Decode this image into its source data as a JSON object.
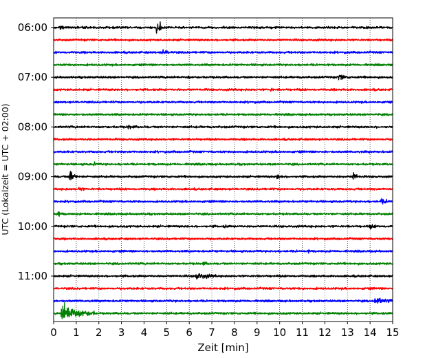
{
  "chart_data": {
    "type": "line",
    "title": "",
    "xlabel": "Zeit  [min]",
    "ylabel": "UTC (Lokalzeit = UTC + 02:00)",
    "xlim": [
      0,
      15
    ],
    "x_ticks": [
      "0",
      "1",
      "2",
      "3",
      "4",
      "5",
      "6",
      "7",
      "8",
      "9",
      "10",
      "11",
      "12",
      "13",
      "14",
      "15"
    ],
    "y_tick_labels": [
      "06:00",
      "07:00",
      "08:00",
      "09:00",
      "10:00",
      "11:00"
    ],
    "y_tick_rows": [
      0,
      4,
      8,
      12,
      16,
      20
    ],
    "vertical_grid": true,
    "grid_style": "dotted",
    "row_interval_minutes": 15,
    "start_time": "06:00",
    "colors": [
      "#000000",
      "#ff0000",
      "#0000ff",
      "#008000"
    ],
    "color_names": [
      "black",
      "red",
      "blue",
      "green"
    ],
    "traces": [
      {
        "row": 0,
        "time": "06:00",
        "color": "black",
        "events": [
          {
            "t": 0.3,
            "amp": 1.2,
            "len": 0.15
          },
          {
            "t": 4.55,
            "amp": 5.5,
            "len": 0.12
          },
          {
            "t": 4.7,
            "amp": 3.5,
            "len": 0.1
          }
        ]
      },
      {
        "row": 1,
        "time": "06:15",
        "color": "red",
        "events": []
      },
      {
        "row": 2,
        "time": "06:30",
        "color": "blue",
        "events": [
          {
            "t": 4.8,
            "amp": 1.3,
            "len": 0.5
          }
        ]
      },
      {
        "row": 3,
        "time": "06:45",
        "color": "green",
        "events": []
      },
      {
        "row": 4,
        "time": "07:00",
        "color": "black",
        "events": [
          {
            "t": 5.95,
            "amp": 1.2,
            "len": 0.1
          },
          {
            "t": 12.6,
            "amp": 1.6,
            "len": 0.5
          }
        ]
      },
      {
        "row": 5,
        "time": "07:15",
        "color": "red",
        "events": [
          {
            "t": 9.6,
            "amp": 1.0,
            "len": 0.15
          }
        ]
      },
      {
        "row": 6,
        "time": "07:30",
        "color": "blue",
        "events": []
      },
      {
        "row": 7,
        "time": "07:45",
        "color": "green",
        "events": []
      },
      {
        "row": 8,
        "time": "08:00",
        "color": "black",
        "events": [
          {
            "t": 3.3,
            "amp": 1.0,
            "len": 0.4
          }
        ]
      },
      {
        "row": 9,
        "time": "08:15",
        "color": "red",
        "events": []
      },
      {
        "row": 10,
        "time": "08:30",
        "color": "blue",
        "events": []
      },
      {
        "row": 11,
        "time": "08:45",
        "color": "green",
        "events": [
          {
            "t": 1.8,
            "amp": 1.3,
            "len": 0.1
          }
        ]
      },
      {
        "row": 12,
        "time": "09:00",
        "color": "black",
        "events": [
          {
            "t": 0.7,
            "amp": 4.5,
            "len": 0.35
          },
          {
            "t": 9.9,
            "amp": 1.6,
            "len": 0.3
          },
          {
            "t": 13.25,
            "amp": 3.0,
            "len": 0.25
          }
        ]
      },
      {
        "row": 13,
        "time": "09:15",
        "color": "red",
        "events": [
          {
            "t": 1.1,
            "amp": 1.2,
            "len": 0.3
          }
        ]
      },
      {
        "row": 14,
        "time": "09:30",
        "color": "blue",
        "events": [
          {
            "t": 14.5,
            "amp": 1.2,
            "len": 0.5
          }
        ]
      },
      {
        "row": 15,
        "time": "09:45",
        "color": "green",
        "events": [
          {
            "t": 0.15,
            "amp": 1.4,
            "len": 0.3
          }
        ]
      },
      {
        "row": 16,
        "time": "10:00",
        "color": "black",
        "events": [
          {
            "t": 7.6,
            "amp": 1.0,
            "len": 0.1
          },
          {
            "t": 14.0,
            "amp": 1.1,
            "len": 0.3
          }
        ]
      },
      {
        "row": 17,
        "time": "10:15",
        "color": "red",
        "events": []
      },
      {
        "row": 18,
        "time": "10:30",
        "color": "blue",
        "events": [
          {
            "t": 11.3,
            "amp": 1.0,
            "len": 0.1
          }
        ]
      },
      {
        "row": 19,
        "time": "10:45",
        "color": "green",
        "events": [
          {
            "t": 6.6,
            "amp": 1.0,
            "len": 0.3
          }
        ]
      },
      {
        "row": 20,
        "time": "11:00",
        "color": "black",
        "events": [
          {
            "t": 6.3,
            "amp": 1.9,
            "len": 0.9
          }
        ]
      },
      {
        "row": 21,
        "time": "11:15",
        "color": "red",
        "events": []
      },
      {
        "row": 22,
        "time": "11:30",
        "color": "blue",
        "events": [
          {
            "t": 14.2,
            "amp": 2.0,
            "len": 0.8
          }
        ]
      },
      {
        "row": 23,
        "time": "11:45",
        "color": "green",
        "events": [
          {
            "t": 0.35,
            "amp": 5.5,
            "len": 1.5
          }
        ]
      }
    ]
  }
}
